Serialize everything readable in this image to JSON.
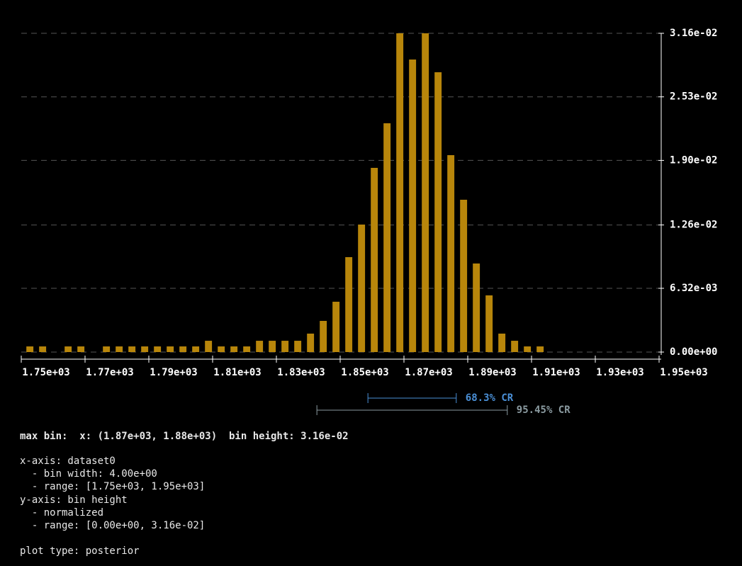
{
  "chart_data": {
    "type": "histogram",
    "bins": [
      1750,
      1754,
      1758,
      1762,
      1766,
      1770,
      1774,
      1778,
      1782,
      1786,
      1790,
      1794,
      1798,
      1802,
      1806,
      1810,
      1814,
      1818,
      1822,
      1826,
      1830,
      1834,
      1838,
      1842,
      1846,
      1850,
      1854,
      1858,
      1862,
      1866,
      1870,
      1874,
      1878,
      1882,
      1886,
      1890,
      1894,
      1898,
      1902,
      1906,
      1910,
      1914,
      1918,
      1922,
      1926,
      1930,
      1934,
      1938,
      1942,
      1946,
      1950
    ],
    "values": [
      0.00056,
      0.00056,
      0,
      0.00056,
      0.00056,
      0,
      0.00056,
      0.00056,
      0.00056,
      0.00056,
      0.00056,
      0.00056,
      0.00056,
      0.00056,
      0.00112,
      0.00056,
      0.00056,
      0.00056,
      0.00112,
      0.00112,
      0.00112,
      0.00112,
      0.00183,
      0.00309,
      0.00499,
      0.00941,
      0.01264,
      0.01826,
      0.02268,
      0.0316,
      0.029,
      0.0316,
      0.02774,
      0.01952,
      0.0151,
      0.00878,
      0.00562,
      0.00183,
      0.00112,
      0.00056,
      0.00056,
      0,
      0,
      0,
      0,
      0,
      0,
      0,
      0,
      0
    ],
    "color": "#b8860b",
    "xlim": [
      1750,
      1950
    ],
    "xticks": [
      {
        "value": 1750,
        "label": "1.75e+03"
      },
      {
        "value": 1770,
        "label": "1.77e+03"
      },
      {
        "value": 1790,
        "label": "1.79e+03"
      },
      {
        "value": 1810,
        "label": "1.81e+03"
      },
      {
        "value": 1830,
        "label": "1.83e+03"
      },
      {
        "value": 1850,
        "label": "1.85e+03"
      },
      {
        "value": 1870,
        "label": "1.87e+03"
      },
      {
        "value": 1890,
        "label": "1.89e+03"
      },
      {
        "value": 1910,
        "label": "1.91e+03"
      },
      {
        "value": 1930,
        "label": "1.93e+03"
      },
      {
        "value": 1950,
        "label": "1.95e+03"
      }
    ],
    "ylim": [
      0,
      0.0316
    ],
    "yticks": [
      {
        "value": 0,
        "label": "0.00e+00"
      },
      {
        "value": 0.00632,
        "label": "6.32e-03"
      },
      {
        "value": 0.0126,
        "label": "1.26e-02"
      },
      {
        "value": 0.019,
        "label": "1.90e-02"
      },
      {
        "value": 0.0253,
        "label": "2.53e-02"
      },
      {
        "value": 0.0316,
        "label": "3.16e-02"
      }
    ],
    "grid": true,
    "intervals": [
      {
        "name": "68.3% CR",
        "lo": 1858.7,
        "hi": 1886.4,
        "color": "#4a8fd6"
      },
      {
        "name": "95.45% CR",
        "lo": 1842.7,
        "hi": 1902.4,
        "color": "#8a9aa0"
      }
    ]
  },
  "max_bin": "max bin:  x: (1.87e+03, 1.88e+03)  bin height: 3.16e-02",
  "axes_info": [
    "x-axis: dataset0",
    "  - bin width: 4.00e+00",
    "  - range: [1.75e+03, 1.95e+03]",
    "y-axis: bin height",
    "  - normalized",
    "  - range: [0.00e+00, 3.16e-02]"
  ],
  "plot_type": "plot type: posterior"
}
